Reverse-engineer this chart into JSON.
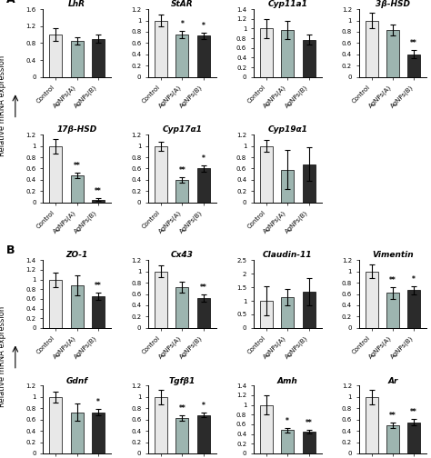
{
  "section_A": {
    "row1": [
      {
        "title": "LhR",
        "ylim": [
          0,
          1.6
        ],
        "yticks": [
          0,
          0.4,
          0.8,
          1.2,
          1.6
        ],
        "bars": [
          1.0,
          0.85,
          0.9
        ],
        "errors": [
          0.15,
          0.08,
          0.1
        ],
        "stars": [
          "",
          "",
          ""
        ]
      },
      {
        "title": "StAR",
        "ylim": [
          0,
          1.2
        ],
        "yticks": [
          0,
          0.2,
          0.4,
          0.6,
          0.8,
          1.0,
          1.2
        ],
        "bars": [
          1.0,
          0.75,
          0.73
        ],
        "errors": [
          0.1,
          0.07,
          0.06
        ],
        "stars": [
          "",
          "*",
          "*"
        ]
      },
      {
        "title": "Cyp11a1",
        "ylim": [
          0,
          1.4
        ],
        "yticks": [
          0,
          0.2,
          0.4,
          0.6,
          0.8,
          1.0,
          1.2,
          1.4
        ],
        "bars": [
          1.0,
          0.97,
          0.77
        ],
        "errors": [
          0.2,
          0.18,
          0.1
        ],
        "stars": [
          "",
          "",
          ""
        ]
      },
      {
        "title": "3β-HSD",
        "ylim": [
          0,
          1.2
        ],
        "yticks": [
          0,
          0.2,
          0.4,
          0.6,
          0.8,
          1.0,
          1.2
        ],
        "bars": [
          1.0,
          0.83,
          0.4
        ],
        "errors": [
          0.13,
          0.1,
          0.07
        ],
        "stars": [
          "",
          "",
          "**"
        ]
      }
    ],
    "row2": [
      {
        "title": "17β-HSD",
        "ylim": [
          0,
          1.2
        ],
        "yticks": [
          0,
          0.2,
          0.4,
          0.6,
          0.8,
          1.0,
          1.2
        ],
        "bars": [
          1.0,
          0.48,
          0.05
        ],
        "errors": [
          0.13,
          0.05,
          0.02
        ],
        "stars": [
          "",
          "**",
          "**"
        ]
      },
      {
        "title": "Cyp17α1",
        "ylim": [
          0,
          1.2
        ],
        "yticks": [
          0,
          0.2,
          0.4,
          0.6,
          0.8,
          1.0,
          1.2
        ],
        "bars": [
          1.0,
          0.4,
          0.6
        ],
        "errors": [
          0.08,
          0.05,
          0.05
        ],
        "stars": [
          "",
          "**",
          "*"
        ]
      },
      {
        "title": "Cyp19α1",
        "ylim": [
          0,
          1.2
        ],
        "yticks": [
          0,
          0.2,
          0.4,
          0.6,
          0.8,
          1.0,
          1.2
        ],
        "bars": [
          1.0,
          0.58,
          0.68
        ],
        "errors": [
          0.1,
          0.35,
          0.3
        ],
        "stars": [
          "",
          "",
          ""
        ]
      }
    ]
  },
  "section_B": {
    "row1": [
      {
        "title": "ZO-1",
        "ylim": [
          0,
          1.4
        ],
        "yticks": [
          0,
          0.2,
          0.4,
          0.6,
          0.8,
          1.0,
          1.2,
          1.4
        ],
        "bars": [
          1.0,
          0.88,
          0.65
        ],
        "errors": [
          0.15,
          0.2,
          0.08
        ],
        "stars": [
          "",
          "",
          "**"
        ]
      },
      {
        "title": "Cx43",
        "ylim": [
          0,
          1.2
        ],
        "yticks": [
          0,
          0.2,
          0.4,
          0.6,
          0.8,
          1.0,
          1.2
        ],
        "bars": [
          1.0,
          0.72,
          0.53
        ],
        "errors": [
          0.1,
          0.1,
          0.06
        ],
        "stars": [
          "",
          "",
          "**"
        ]
      },
      {
        "title": "Claudin-11",
        "ylim": [
          0,
          2.5
        ],
        "yticks": [
          0,
          0.5,
          1.0,
          1.5,
          2.0,
          2.5
        ],
        "bars": [
          1.0,
          1.15,
          1.35
        ],
        "errors": [
          0.55,
          0.3,
          0.5
        ],
        "stars": [
          "",
          "",
          ""
        ]
      },
      {
        "title": "Vimentin",
        "ylim": [
          0,
          1.2
        ],
        "yticks": [
          0,
          0.2,
          0.4,
          0.6,
          0.8,
          1.0,
          1.2
        ],
        "bars": [
          1.0,
          0.62,
          0.67
        ],
        "errors": [
          0.12,
          0.1,
          0.07
        ],
        "stars": [
          "",
          "**",
          "*"
        ]
      }
    ],
    "row2": [
      {
        "title": "Gdnf",
        "ylim": [
          0,
          1.2
        ],
        "yticks": [
          0,
          0.2,
          0.4,
          0.6,
          0.8,
          1.0,
          1.2
        ],
        "bars": [
          1.0,
          0.73,
          0.73
        ],
        "errors": [
          0.1,
          0.15,
          0.05
        ],
        "stars": [
          "",
          "",
          "*"
        ]
      },
      {
        "title": "Tgfβ1",
        "ylim": [
          0,
          1.2
        ],
        "yticks": [
          0,
          0.2,
          0.4,
          0.6,
          0.8,
          1.0,
          1.2
        ],
        "bars": [
          1.0,
          0.63,
          0.68
        ],
        "errors": [
          0.13,
          0.05,
          0.04
        ],
        "stars": [
          "",
          "**",
          "*"
        ]
      },
      {
        "title": "Amh",
        "ylim": [
          0,
          1.4
        ],
        "yticks": [
          0,
          0.2,
          0.4,
          0.6,
          0.8,
          1.0,
          1.2,
          1.4
        ],
        "bars": [
          1.0,
          0.48,
          0.45
        ],
        "errors": [
          0.2,
          0.05,
          0.04
        ],
        "stars": [
          "",
          "*",
          "**"
        ]
      },
      {
        "title": "Ar",
        "ylim": [
          0,
          1.2
        ],
        "yticks": [
          0,
          0.2,
          0.4,
          0.6,
          0.8,
          1.0,
          1.2
        ],
        "bars": [
          1.0,
          0.5,
          0.55
        ],
        "errors": [
          0.13,
          0.05,
          0.06
        ],
        "stars": [
          "",
          "**",
          "**"
        ]
      }
    ]
  },
  "bar_colors": [
    "#e8e8e8",
    "#9db5b0",
    "#2b2b2b"
  ],
  "xlabel_labels": [
    "Control",
    "AgNPs(A)",
    "AgNPs(B)"
  ],
  "ylabel": "Relative mRNA expression"
}
